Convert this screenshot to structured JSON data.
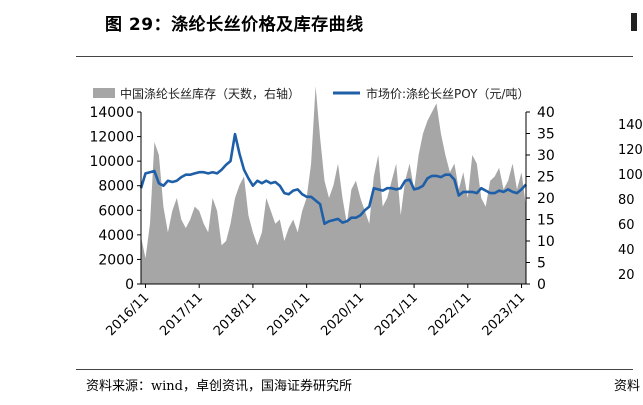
{
  "figure": {
    "title": "图 29：涤纶长丝价格及库存曲线",
    "source": "资料来源：wind，卓创资讯，国海证券研究所"
  },
  "right_clip": {
    "ticks": [
      "140",
      "120",
      "100",
      "80",
      "60",
      "40",
      "20"
    ],
    "source_fragment": "资料"
  },
  "chart_data": {
    "type": "area+line",
    "series": [
      {
        "name": "中国涤纶长丝库存（天数，右轴）",
        "type": "area",
        "axis": "right",
        "color": "#a6a6a6",
        "x": [
          "2016-10",
          "2016-11",
          "2016-12",
          "2017-01",
          "2017-02",
          "2017-03",
          "2017-04",
          "2017-05",
          "2017-06",
          "2017-07",
          "2017-08",
          "2017-09",
          "2017-10",
          "2017-11",
          "2017-12",
          "2018-01",
          "2018-02",
          "2018-03",
          "2018-04",
          "2018-05",
          "2018-06",
          "2018-07",
          "2018-08",
          "2018-09",
          "2018-10",
          "2018-11",
          "2018-12",
          "2019-01",
          "2019-02",
          "2019-03",
          "2019-04",
          "2019-05",
          "2019-06",
          "2019-07",
          "2019-08",
          "2019-09",
          "2019-10",
          "2019-11",
          "2019-12",
          "2020-01",
          "2020-02",
          "2020-03",
          "2020-04",
          "2020-05",
          "2020-06",
          "2020-07",
          "2020-08",
          "2020-09",
          "2020-10",
          "2020-11",
          "2020-12",
          "2021-01",
          "2021-02",
          "2021-03",
          "2021-04",
          "2021-05",
          "2021-06",
          "2021-07",
          "2021-08",
          "2021-09",
          "2021-10",
          "2021-11",
          "2021-12",
          "2022-01",
          "2022-02",
          "2022-03",
          "2022-04",
          "2022-05",
          "2022-06",
          "2022-07",
          "2022-08",
          "2022-09",
          "2022-10",
          "2022-11",
          "2022-12",
          "2023-01",
          "2023-02",
          "2023-03",
          "2023-04",
          "2023-05",
          "2023-06",
          "2023-07",
          "2023-08",
          "2023-09",
          "2023-10",
          "2023-11",
          "2023-12"
        ],
        "values": [
          11,
          6,
          14,
          33,
          30,
          18,
          12,
          17,
          20,
          15,
          13,
          15,
          18,
          17,
          14,
          12,
          20,
          17,
          9,
          10,
          14,
          20,
          23,
          25,
          16,
          12,
          9,
          12,
          20,
          17,
          14,
          15,
          10,
          13,
          15,
          12,
          17,
          20,
          28,
          46,
          34,
          24,
          20,
          23,
          28,
          20,
          14,
          22,
          24,
          20,
          17,
          14,
          25,
          30,
          18,
          20,
          24,
          28,
          16,
          24,
          28,
          22,
          30,
          35,
          38,
          40,
          42,
          35,
          30,
          26,
          28,
          22,
          26,
          20,
          30,
          28,
          20,
          18,
          24,
          25,
          27,
          22,
          24,
          28,
          22,
          26,
          18
        ]
      },
      {
        "name": "市场价:涤纶长丝POY（元/吨）",
        "type": "line",
        "axis": "left",
        "color": "#1f5fa8",
        "x": [
          "2016-10",
          "2016-11",
          "2016-12",
          "2017-01",
          "2017-02",
          "2017-03",
          "2017-04",
          "2017-05",
          "2017-06",
          "2017-07",
          "2017-08",
          "2017-09",
          "2017-10",
          "2017-11",
          "2017-12",
          "2018-01",
          "2018-02",
          "2018-03",
          "2018-04",
          "2018-05",
          "2018-06",
          "2018-07",
          "2018-08",
          "2018-09",
          "2018-10",
          "2018-11",
          "2018-12",
          "2019-01",
          "2019-02",
          "2019-03",
          "2019-04",
          "2019-05",
          "2019-06",
          "2019-07",
          "2019-08",
          "2019-09",
          "2019-10",
          "2019-11",
          "2019-12",
          "2020-01",
          "2020-02",
          "2020-03",
          "2020-04",
          "2020-05",
          "2020-06",
          "2020-07",
          "2020-08",
          "2020-09",
          "2020-10",
          "2020-11",
          "2020-12",
          "2021-01",
          "2021-02",
          "2021-03",
          "2021-04",
          "2021-05",
          "2021-06",
          "2021-07",
          "2021-08",
          "2021-09",
          "2021-10",
          "2021-11",
          "2021-12",
          "2022-01",
          "2022-02",
          "2022-03",
          "2022-04",
          "2022-05",
          "2022-06",
          "2022-07",
          "2022-08",
          "2022-09",
          "2022-10",
          "2022-11",
          "2022-12",
          "2023-01",
          "2023-02",
          "2023-03",
          "2023-04",
          "2023-05",
          "2023-06",
          "2023-07",
          "2023-08",
          "2023-09",
          "2023-10",
          "2023-11",
          "2023-12"
        ],
        "values": [
          7800,
          9000,
          9100,
          9200,
          8200,
          8000,
          8400,
          8300,
          8400,
          8700,
          8900,
          8900,
          9000,
          9100,
          9100,
          9000,
          9100,
          9000,
          9300,
          9700,
          10000,
          12200,
          10600,
          9300,
          8600,
          8000,
          8400,
          8200,
          8400,
          8200,
          8300,
          8000,
          7400,
          7300,
          7600,
          7700,
          7300,
          7100,
          7100,
          6800,
          6500,
          4900,
          5100,
          5200,
          5300,
          5000,
          5100,
          5400,
          5400,
          5600,
          6000,
          6300,
          7800,
          7700,
          7600,
          7800,
          7800,
          7700,
          7800,
          8400,
          8500,
          7700,
          7800,
          8000,
          8600,
          8800,
          8800,
          8700,
          8900,
          8900,
          8500,
          7200,
          7500,
          7500,
          7500,
          7400,
          7800,
          7600,
          7400,
          7400,
          7600,
          7500,
          7700,
          7500,
          7400,
          7700,
          8100
        ]
      }
    ],
    "x_tick_labels": [
      "2016/11",
      "2017/11",
      "2018/11",
      "2019/11",
      "2020/11",
      "2021/11",
      "2022/11",
      "2023/11"
    ],
    "left_axis": {
      "ylim": [
        0,
        14000
      ],
      "ticks": [
        "0",
        "2000",
        "4000",
        "6000",
        "8000",
        "10000",
        "12000",
        "14000"
      ]
    },
    "right_axis": {
      "ylim": [
        0,
        40
      ],
      "ticks": [
        "0",
        "5",
        "10",
        "15",
        "20",
        "25",
        "30",
        "35",
        "40"
      ]
    },
    "legend": {
      "placement": "top"
    },
    "grid": false
  }
}
